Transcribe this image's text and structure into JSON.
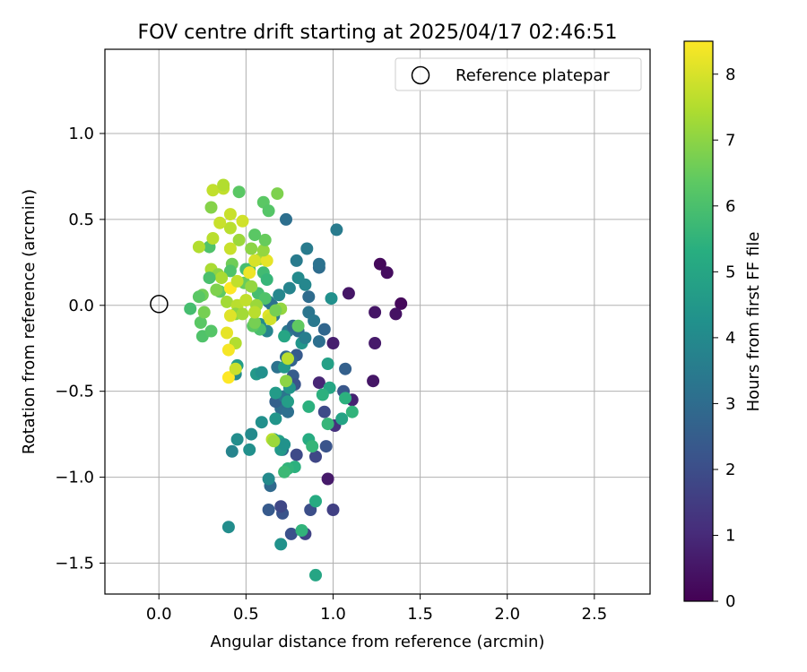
{
  "chart_data": {
    "type": "scatter",
    "title": "FOV centre drift starting at 2025/04/17 02:46:51",
    "xlabel": "Angular distance from reference (arcmin)",
    "ylabel": "Rotation from reference (arcmin)",
    "xlim": [
      -0.31,
      2.82
    ],
    "ylim": [
      -1.68,
      1.49
    ],
    "xticks": [
      0.0,
      0.5,
      1.0,
      1.5,
      2.0,
      2.5
    ],
    "xtick_labels": [
      "0.0",
      "0.5",
      "1.0",
      "1.5",
      "2.0",
      "2.5"
    ],
    "yticks": [
      -1.5,
      -1.0,
      -0.5,
      0.0,
      0.5,
      1.0
    ],
    "ytick_labels": [
      "−1.5",
      "−1.0",
      "−0.5",
      "0.0",
      "0.5",
      "1.0"
    ],
    "grid": true,
    "colormap": "viridis",
    "colorbar": {
      "label": "Hours from first FF file",
      "range": [
        0,
        8.5
      ],
      "ticks": [
        0,
        1,
        2,
        3,
        4,
        5,
        6,
        7,
        8
      ],
      "tick_labels": [
        "0",
        "1",
        "2",
        "3",
        "4",
        "5",
        "6",
        "7",
        "8"
      ]
    },
    "legend": {
      "position": "top-right",
      "entries": [
        {
          "label": "Reference platepar",
          "marker": "open-circle"
        }
      ]
    },
    "reference_point": {
      "x": 0.0,
      "y": 0.0
    },
    "points": [
      {
        "x": 1.27,
        "y": 0.24,
        "c": 0.2
      },
      {
        "x": 1.31,
        "y": 0.19,
        "c": 0.3
      },
      {
        "x": 1.39,
        "y": 0.01,
        "c": 0.2
      },
      {
        "x": 1.36,
        "y": -0.05,
        "c": 0.4
      },
      {
        "x": 1.24,
        "y": -0.04,
        "c": 0.5
      },
      {
        "x": 1.24,
        "y": -0.22,
        "c": 0.6
      },
      {
        "x": 1.23,
        "y": -0.44,
        "c": 0.5
      },
      {
        "x": 1.09,
        "y": 0.07,
        "c": 0.5
      },
      {
        "x": 1.0,
        "y": -0.22,
        "c": 0.7
      },
      {
        "x": 1.11,
        "y": -0.55,
        "c": 0.8
      },
      {
        "x": 1.01,
        "y": -0.7,
        "c": 1.2
      },
      {
        "x": 0.97,
        "y": -1.01,
        "c": 0.6
      },
      {
        "x": 0.92,
        "y": -0.45,
        "c": 0.9
      },
      {
        "x": 1.0,
        "y": -1.19,
        "c": 1.6
      },
      {
        "x": 0.95,
        "y": -0.62,
        "c": 1.9
      },
      {
        "x": 1.06,
        "y": -0.5,
        "c": 2.3
      },
      {
        "x": 1.07,
        "y": -0.37,
        "c": 2.6
      },
      {
        "x": 0.96,
        "y": -0.82,
        "c": 2.2
      },
      {
        "x": 0.9,
        "y": -0.88,
        "c": 1.8
      },
      {
        "x": 0.87,
        "y": -1.19,
        "c": 2.0
      },
      {
        "x": 0.79,
        "y": -0.87,
        "c": 1.9
      },
      {
        "x": 0.84,
        "y": -1.33,
        "c": 1.7
      },
      {
        "x": 0.76,
        "y": -1.33,
        "c": 2.1
      },
      {
        "x": 0.71,
        "y": -1.21,
        "c": 2.2
      },
      {
        "x": 0.7,
        "y": -1.17,
        "c": 1.8
      },
      {
        "x": 0.63,
        "y": -1.19,
        "c": 2.4
      },
      {
        "x": 0.64,
        "y": -1.05,
        "c": 2.9
      },
      {
        "x": 0.71,
        "y": -0.84,
        "c": 2.8
      },
      {
        "x": 0.7,
        "y": -0.6,
        "c": 3.0
      },
      {
        "x": 0.67,
        "y": -0.56,
        "c": 2.6
      },
      {
        "x": 0.74,
        "y": -0.62,
        "c": 3.1
      },
      {
        "x": 0.77,
        "y": -0.41,
        "c": 2.5
      },
      {
        "x": 0.78,
        "y": -0.46,
        "c": 2.2
      },
      {
        "x": 0.72,
        "y": -0.53,
        "c": 3.3
      },
      {
        "x": 0.79,
        "y": -0.29,
        "c": 2.4
      },
      {
        "x": 0.76,
        "y": -0.32,
        "c": 2.7
      },
      {
        "x": 0.73,
        "y": -0.3,
        "c": 2.9
      },
      {
        "x": 0.68,
        "y": -0.36,
        "c": 3.2
      },
      {
        "x": 0.74,
        "y": -0.15,
        "c": 3.4
      },
      {
        "x": 0.77,
        "y": -0.12,
        "c": 2.9
      },
      {
        "x": 0.8,
        "y": -0.15,
        "c": 3.0
      },
      {
        "x": 0.82,
        "y": -0.22,
        "c": 4.4
      },
      {
        "x": 0.84,
        "y": -0.19,
        "c": 3.6
      },
      {
        "x": 0.86,
        "y": -0.04,
        "c": 3.3
      },
      {
        "x": 0.89,
        "y": -0.09,
        "c": 3.4
      },
      {
        "x": 0.92,
        "y": -0.21,
        "c": 3.1
      },
      {
        "x": 0.95,
        "y": -0.14,
        "c": 2.8
      },
      {
        "x": 0.97,
        "y": -0.34,
        "c": 4.8
      },
      {
        "x": 0.98,
        "y": -0.48,
        "c": 5.0
      },
      {
        "x": 0.94,
        "y": -0.52,
        "c": 5.4
      },
      {
        "x": 0.97,
        "y": -0.69,
        "c": 5.6
      },
      {
        "x": 1.05,
        "y": -0.66,
        "c": 4.9
      },
      {
        "x": 1.07,
        "y": -0.54,
        "c": 5.4
      },
      {
        "x": 1.11,
        "y": -0.62,
        "c": 5.5
      },
      {
        "x": 0.86,
        "y": -0.78,
        "c": 5.2
      },
      {
        "x": 0.88,
        "y": -0.82,
        "c": 5.6
      },
      {
        "x": 0.86,
        "y": -0.59,
        "c": 5.4
      },
      {
        "x": 0.78,
        "y": -0.94,
        "c": 5.4
      },
      {
        "x": 0.74,
        "y": -0.95,
        "c": 5.5
      },
      {
        "x": 0.72,
        "y": -0.97,
        "c": 5.7
      },
      {
        "x": 0.82,
        "y": -1.31,
        "c": 5.5
      },
      {
        "x": 0.7,
        "y": -1.39,
        "c": 4.3
      },
      {
        "x": 0.9,
        "y": -1.14,
        "c": 5.2
      },
      {
        "x": 0.9,
        "y": -1.57,
        "c": 5.0
      },
      {
        "x": 0.4,
        "y": -1.29,
        "c": 4.1
      },
      {
        "x": 0.45,
        "y": -0.78,
        "c": 4.1
      },
      {
        "x": 0.42,
        "y": -0.85,
        "c": 3.8
      },
      {
        "x": 0.52,
        "y": -0.84,
        "c": 4.2
      },
      {
        "x": 0.53,
        "y": -0.75,
        "c": 4.0
      },
      {
        "x": 0.59,
        "y": -0.68,
        "c": 4.2
      },
      {
        "x": 0.63,
        "y": -1.01,
        "c": 4.0
      },
      {
        "x": 0.66,
        "y": -0.78,
        "c": 4.6
      },
      {
        "x": 0.69,
        "y": -0.79,
        "c": 4.8
      },
      {
        "x": 0.7,
        "y": -0.84,
        "c": 4.5
      },
      {
        "x": 0.72,
        "y": -0.81,
        "c": 4.3
      },
      {
        "x": 0.67,
        "y": -0.66,
        "c": 4.4
      },
      {
        "x": 0.67,
        "y": -0.51,
        "c": 4.6
      },
      {
        "x": 0.74,
        "y": -0.56,
        "c": 4.7
      },
      {
        "x": 0.75,
        "y": -0.48,
        "c": 4.4
      },
      {
        "x": 0.56,
        "y": -0.4,
        "c": 4.5
      },
      {
        "x": 0.59,
        "y": -0.39,
        "c": 4.2
      },
      {
        "x": 0.45,
        "y": -0.35,
        "c": 4.7
      },
      {
        "x": 0.44,
        "y": -0.4,
        "c": 4.0
      },
      {
        "x": 0.72,
        "y": -0.36,
        "c": 4.5
      },
      {
        "x": 0.58,
        "y": -0.11,
        "c": 4.1
      },
      {
        "x": 0.62,
        "y": -0.15,
        "c": 3.8
      },
      {
        "x": 0.66,
        "y": -0.06,
        "c": 3.4
      },
      {
        "x": 0.63,
        "y": 0.02,
        "c": 3.6
      },
      {
        "x": 0.65,
        "y": 0.0,
        "c": 3.2
      },
      {
        "x": 0.69,
        "y": 0.06,
        "c": 3.9
      },
      {
        "x": 0.75,
        "y": 0.1,
        "c": 3.8
      },
      {
        "x": 0.8,
        "y": 0.16,
        "c": 4.0
      },
      {
        "x": 0.84,
        "y": 0.12,
        "c": 3.9
      },
      {
        "x": 0.86,
        "y": 0.05,
        "c": 3.0
      },
      {
        "x": 0.79,
        "y": 0.26,
        "c": 3.5
      },
      {
        "x": 0.85,
        "y": 0.33,
        "c": 3.5
      },
      {
        "x": 0.92,
        "y": 0.22,
        "c": 3.0
      },
      {
        "x": 0.92,
        "y": 0.24,
        "c": 3.2
      },
      {
        "x": 0.73,
        "y": 0.5,
        "c": 3.1
      },
      {
        "x": 1.02,
        "y": 0.44,
        "c": 3.5
      },
      {
        "x": 0.99,
        "y": 0.04,
        "c": 4.2
      },
      {
        "x": 0.72,
        "y": -0.18,
        "c": 5.0
      },
      {
        "x": 0.58,
        "y": -0.14,
        "c": 6.0
      },
      {
        "x": 0.54,
        "y": -0.12,
        "c": 6.3
      },
      {
        "x": 0.55,
        "y": -0.1,
        "c": 6.7
      },
      {
        "x": 0.6,
        "y": 0.19,
        "c": 5.8
      },
      {
        "x": 0.62,
        "y": 0.15,
        "c": 5.6
      },
      {
        "x": 0.57,
        "y": 0.07,
        "c": 5.9
      },
      {
        "x": 0.61,
        "y": 0.04,
        "c": 6.1
      },
      {
        "x": 0.52,
        "y": 0.21,
        "c": 6.2
      },
      {
        "x": 0.49,
        "y": 0.13,
        "c": 6.5
      },
      {
        "x": 0.5,
        "y": 0.21,
        "c": 5.9
      },
      {
        "x": 0.42,
        "y": 0.24,
        "c": 6.6
      },
      {
        "x": 0.41,
        "y": 0.2,
        "c": 6.1
      },
      {
        "x": 0.35,
        "y": 0.08,
        "c": 6.4
      },
      {
        "x": 0.29,
        "y": 0.34,
        "c": 6.1
      },
      {
        "x": 0.23,
        "y": 0.34,
        "c": 7.5
      },
      {
        "x": 0.24,
        "y": -0.1,
        "c": 6.3
      },
      {
        "x": 0.25,
        "y": -0.18,
        "c": 6.1
      },
      {
        "x": 0.18,
        "y": -0.02,
        "c": 5.9
      },
      {
        "x": 0.26,
        "y": -0.04,
        "c": 6.7
      },
      {
        "x": 0.25,
        "y": 0.06,
        "c": 6.6
      },
      {
        "x": 0.3,
        "y": -0.15,
        "c": 6.2
      },
      {
        "x": 0.33,
        "y": 0.09,
        "c": 6.8
      },
      {
        "x": 0.39,
        "y": 0.02,
        "c": 7.3
      },
      {
        "x": 0.45,
        "y": 0.0,
        "c": 7.6
      },
      {
        "x": 0.44,
        "y": -0.22,
        "c": 7.5
      },
      {
        "x": 0.44,
        "y": -0.05,
        "c": 7.0
      },
      {
        "x": 0.5,
        "y": 0.03,
        "c": 7.7
      },
      {
        "x": 0.56,
        "y": 0.0,
        "c": 7.2
      },
      {
        "x": 0.58,
        "y": 0.27,
        "c": 7.3
      },
      {
        "x": 0.62,
        "y": 0.26,
        "c": 8.2
      },
      {
        "x": 0.55,
        "y": 0.26,
        "c": 8.0
      },
      {
        "x": 0.53,
        "y": 0.33,
        "c": 7.0
      },
      {
        "x": 0.52,
        "y": 0.19,
        "c": 8.3
      },
      {
        "x": 0.6,
        "y": 0.32,
        "c": 7.1
      },
      {
        "x": 0.61,
        "y": 0.38,
        "c": 6.5
      },
      {
        "x": 0.55,
        "y": 0.41,
        "c": 6.3
      },
      {
        "x": 0.46,
        "y": 0.38,
        "c": 7.2
      },
      {
        "x": 0.41,
        "y": 0.33,
        "c": 7.8
      },
      {
        "x": 0.41,
        "y": 0.45,
        "c": 7.6
      },
      {
        "x": 0.48,
        "y": 0.49,
        "c": 7.9
      },
      {
        "x": 0.41,
        "y": 0.53,
        "c": 7.8
      },
      {
        "x": 0.35,
        "y": 0.48,
        "c": 7.8
      },
      {
        "x": 0.31,
        "y": 0.39,
        "c": 7.6
      },
      {
        "x": 0.3,
        "y": 0.57,
        "c": 6.9
      },
      {
        "x": 0.31,
        "y": 0.67,
        "c": 7.7
      },
      {
        "x": 0.37,
        "y": 0.68,
        "c": 7.7
      },
      {
        "x": 0.37,
        "y": 0.7,
        "c": 7.5
      },
      {
        "x": 0.46,
        "y": 0.66,
        "c": 6.3
      },
      {
        "x": 0.6,
        "y": 0.6,
        "c": 6.3
      },
      {
        "x": 0.63,
        "y": 0.55,
        "c": 6.2
      },
      {
        "x": 0.68,
        "y": 0.65,
        "c": 6.8
      },
      {
        "x": 0.3,
        "y": 0.21,
        "c": 7.4
      },
      {
        "x": 0.34,
        "y": 0.18,
        "c": 7.0
      },
      {
        "x": 0.36,
        "y": 0.16,
        "c": 7.4
      },
      {
        "x": 0.41,
        "y": 0.1,
        "c": 8.5
      },
      {
        "x": 0.45,
        "y": 0.14,
        "c": 7.7
      },
      {
        "x": 0.53,
        "y": 0.11,
        "c": 7.1
      },
      {
        "x": 0.48,
        "y": -0.05,
        "c": 7.3
      },
      {
        "x": 0.55,
        "y": -0.04,
        "c": 7.6
      },
      {
        "x": 0.63,
        "y": -0.06,
        "c": 8.1
      },
      {
        "x": 0.64,
        "y": -0.08,
        "c": 7.9
      },
      {
        "x": 0.7,
        "y": -0.02,
        "c": 7.1
      },
      {
        "x": 0.41,
        "y": -0.06,
        "c": 8.1
      },
      {
        "x": 0.4,
        "y": -0.26,
        "c": 8.4
      },
      {
        "x": 0.39,
        "y": -0.16,
        "c": 8.2
      },
      {
        "x": 0.4,
        "y": -0.42,
        "c": 8.5
      },
      {
        "x": 0.44,
        "y": -0.37,
        "c": 7.8
      },
      {
        "x": 0.74,
        "y": -0.31,
        "c": 7.6
      },
      {
        "x": 0.73,
        "y": -0.44,
        "c": 7.0
      },
      {
        "x": 0.65,
        "y": -0.78,
        "c": 7.6
      },
      {
        "x": 0.66,
        "y": -0.79,
        "c": 7.2
      },
      {
        "x": 0.8,
        "y": -0.12,
        "c": 6.4
      },
      {
        "x": 0.67,
        "y": -0.03,
        "c": 6.7
      },
      {
        "x": 0.23,
        "y": 0.05,
        "c": 6.3
      },
      {
        "x": 0.29,
        "y": 0.16,
        "c": 6.0
      }
    ]
  }
}
